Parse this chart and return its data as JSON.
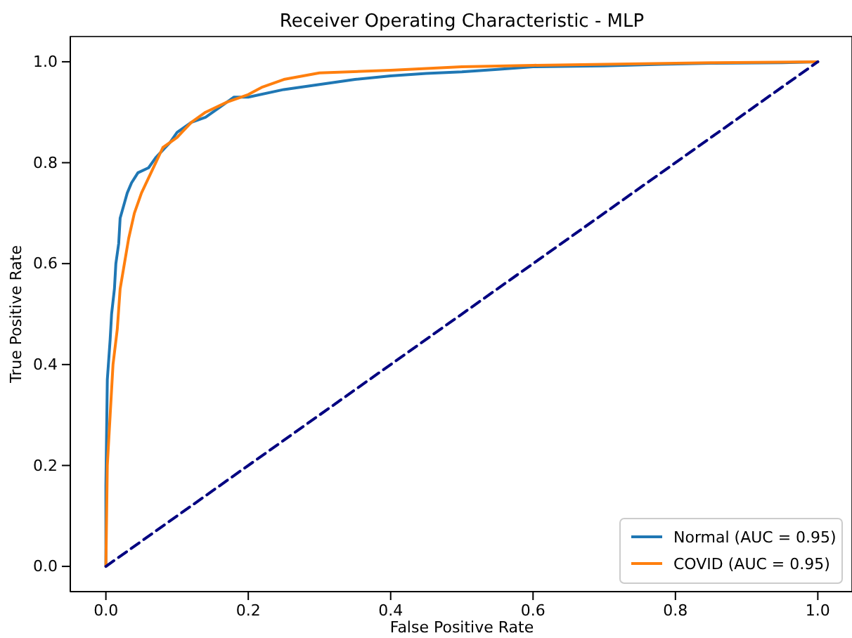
{
  "chart_data": {
    "type": "line",
    "title": "Receiver Operating Characteristic - MLP",
    "xlabel": "False Positive Rate",
    "ylabel": "True Positive Rate",
    "xlim": [
      -0.05,
      1.05
    ],
    "ylim": [
      -0.05,
      1.05
    ],
    "xticks": [
      {
        "value": 0,
        "label": "0.0"
      },
      {
        "value": 0.2,
        "label": "0.2"
      },
      {
        "value": 0.4,
        "label": "0.4"
      },
      {
        "value": 0.6,
        "label": "0.6"
      },
      {
        "value": 0.8,
        "label": "0.8"
      },
      {
        "value": 1,
        "label": "1.0"
      }
    ],
    "yticks": [
      {
        "value": 0,
        "label": "0.0"
      },
      {
        "value": 0.2,
        "label": "0.2"
      },
      {
        "value": 0.4,
        "label": "0.4"
      },
      {
        "value": 0.6,
        "label": "0.6"
      },
      {
        "value": 0.8,
        "label": "0.8"
      },
      {
        "value": 1,
        "label": "1.0"
      }
    ],
    "grid": false,
    "legend": "bottom right",
    "series": [
      {
        "name": "Normal (AUC = 0.95)",
        "color": "#1f77b4",
        "line_style": "solid",
        "x": [
          0,
          0,
          0.002,
          0.006,
          0.008,
          0.012,
          0.014,
          0.018,
          0.02,
          0.026,
          0.03,
          0.036,
          0.045,
          0.06,
          0.07,
          0.09,
          0.1,
          0.12,
          0.14,
          0.16,
          0.18,
          0.2,
          0.25,
          0.3,
          0.35,
          0.4,
          0.45,
          0.5,
          0.55,
          0.6,
          0.7,
          0.78,
          0.85,
          0.95,
          1
        ],
        "values": [
          0,
          0.16,
          0.37,
          0.45,
          0.5,
          0.55,
          0.6,
          0.64,
          0.69,
          0.72,
          0.74,
          0.76,
          0.78,
          0.79,
          0.81,
          0.84,
          0.86,
          0.88,
          0.89,
          0.91,
          0.93,
          0.93,
          0.945,
          0.955,
          0.965,
          0.972,
          0.977,
          0.98,
          0.985,
          0.99,
          0.992,
          0.995,
          0.997,
          0.998,
          1
        ]
      },
      {
        "name": "COVID (AUC = 0.95)",
        "color": "#ff7f0e",
        "line_style": "solid",
        "x": [
          0,
          0.002,
          0.006,
          0.01,
          0.016,
          0.02,
          0.026,
          0.032,
          0.04,
          0.05,
          0.06,
          0.07,
          0.08,
          0.1,
          0.12,
          0.14,
          0.17,
          0.2,
          0.22,
          0.25,
          0.3,
          0.4,
          0.5,
          0.6,
          0.7,
          0.85,
          1
        ],
        "values": [
          0,
          0.2,
          0.3,
          0.4,
          0.47,
          0.55,
          0.6,
          0.65,
          0.7,
          0.74,
          0.77,
          0.8,
          0.83,
          0.85,
          0.88,
          0.9,
          0.92,
          0.935,
          0.95,
          0.965,
          0.978,
          0.983,
          0.99,
          0.993,
          0.995,
          0.998,
          1
        ]
      },
      {
        "color": "#000080",
        "line_style": "dashed",
        "x": [
          0,
          1
        ],
        "values": [
          0,
          1
        ]
      }
    ]
  }
}
